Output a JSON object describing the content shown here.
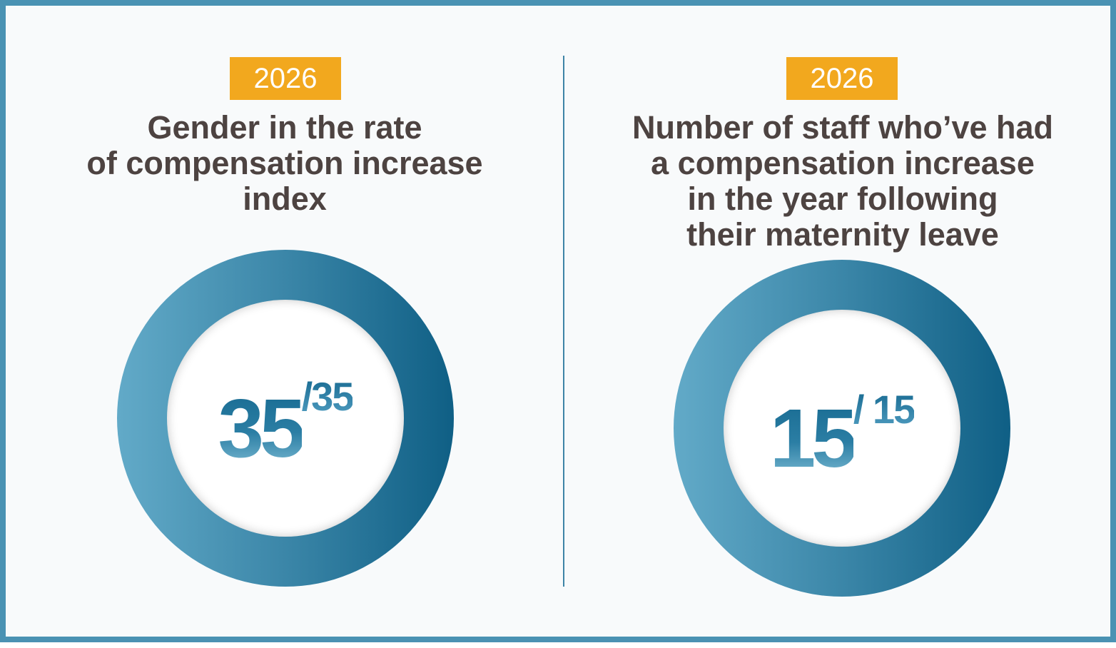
{
  "colors": {
    "border": "#4a92b3",
    "badge": "#f2a81e",
    "title_text": "#4d4341",
    "ring_light": "#62aac8",
    "ring_dark": "#0f5f85",
    "divider": "#3e84a6"
  },
  "panels": [
    {
      "year": "2026",
      "title_lines": [
        "Gender in the rate",
        "of compensation increase",
        "index"
      ],
      "value": "35",
      "total": "/35"
    },
    {
      "year": "2026",
      "title_lines": [
        "Number of staff who’ve had",
        "a compensation increase",
        "in the year following",
        "their maternity leave"
      ],
      "value": "15",
      "total": "/ 15"
    }
  ]
}
